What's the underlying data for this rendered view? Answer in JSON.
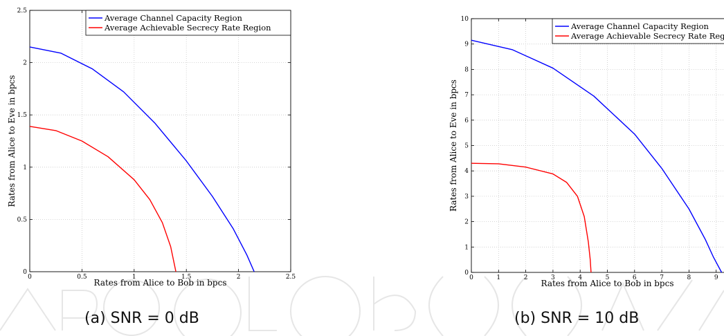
{
  "charts": [
    {
      "caption": "(a)  SNR = 0 dB",
      "chart_data": {
        "type": "line",
        "xlabel": "Rates from Alice to Bob in bpcs",
        "ylabel": "Rates from Alice to Eve in bpcs",
        "xlim": [
          0,
          2.5
        ],
        "ylim": [
          0,
          2.5
        ],
        "xticks": [
          0,
          0.5,
          1,
          1.5,
          2,
          2.5
        ],
        "yticks": [
          0,
          0.5,
          1,
          1.5,
          2,
          2.5
        ],
        "xtick_labels": [
          "0",
          "0.5",
          "1",
          "1.5",
          "2",
          "2.5"
        ],
        "ytick_labels": [
          "0",
          "0.5",
          "1",
          "1.5",
          "2",
          "2.5"
        ],
        "grid": true,
        "legend_position": "top-right",
        "series": [
          {
            "name": "Average Channel Capacity Region",
            "color": "#0000ff",
            "x": [
              0,
              0.3,
              0.6,
              0.9,
              1.2,
              1.5,
              1.75,
              1.95,
              2.08,
              2.15
            ],
            "y": [
              2.15,
              2.09,
              1.94,
              1.72,
              1.42,
              1.06,
              0.72,
              0.41,
              0.16,
              0
            ]
          },
          {
            "name": "Average Achievable Secrecy Rate Region",
            "color": "#ff0000",
            "x": [
              0,
              0.25,
              0.5,
              0.75,
              1.0,
              1.15,
              1.27,
              1.35,
              1.4
            ],
            "y": [
              1.39,
              1.35,
              1.25,
              1.1,
              0.88,
              0.69,
              0.47,
              0.24,
              0
            ]
          }
        ]
      }
    },
    {
      "caption": "(b)  SNR = 10 dB",
      "chart_data": {
        "type": "line",
        "xlabel": "Rates from Alice to Bob in bpcs",
        "ylabel": "Rates from Alice to Eve in bpcs",
        "xlim": [
          0,
          10
        ],
        "ylim": [
          0,
          10
        ],
        "xticks": [
          0,
          1,
          2,
          3,
          4,
          5,
          6,
          7,
          8,
          9
        ],
        "yticks": [
          0,
          1,
          2,
          3,
          4,
          5,
          6,
          7,
          8,
          9,
          10
        ],
        "xtick_labels": [
          "0",
          "1",
          "2",
          "3",
          "4",
          "5",
          "6",
          "7",
          "8",
          "9"
        ],
        "ytick_labels": [
          "0",
          "1",
          "2",
          "3",
          "4",
          "5",
          "6",
          "7",
          "8",
          "9",
          "10"
        ],
        "grid": true,
        "legend_position": "top-right",
        "series": [
          {
            "name": "Average Channel Capacity Region",
            "color": "#0000ff",
            "x": [
              0,
              1.5,
              3,
              4.5,
              6,
              7,
              8,
              8.6,
              8.9,
              9.2
            ],
            "y": [
              9.15,
              8.78,
              8.05,
              6.95,
              5.45,
              4.1,
              2.5,
              1.3,
              0.6,
              0
            ]
          },
          {
            "name": "Average Achievable Secrecy Rate Region",
            "color": "#ff0000",
            "x": [
              0,
              1,
              2,
              3,
              3.5,
              3.9,
              4.15,
              4.3,
              4.37,
              4.4
            ],
            "y": [
              4.3,
              4.28,
              4.15,
              3.88,
              3.55,
              3.0,
              2.2,
              1.2,
              0.5,
              0
            ]
          }
        ]
      }
    }
  ]
}
